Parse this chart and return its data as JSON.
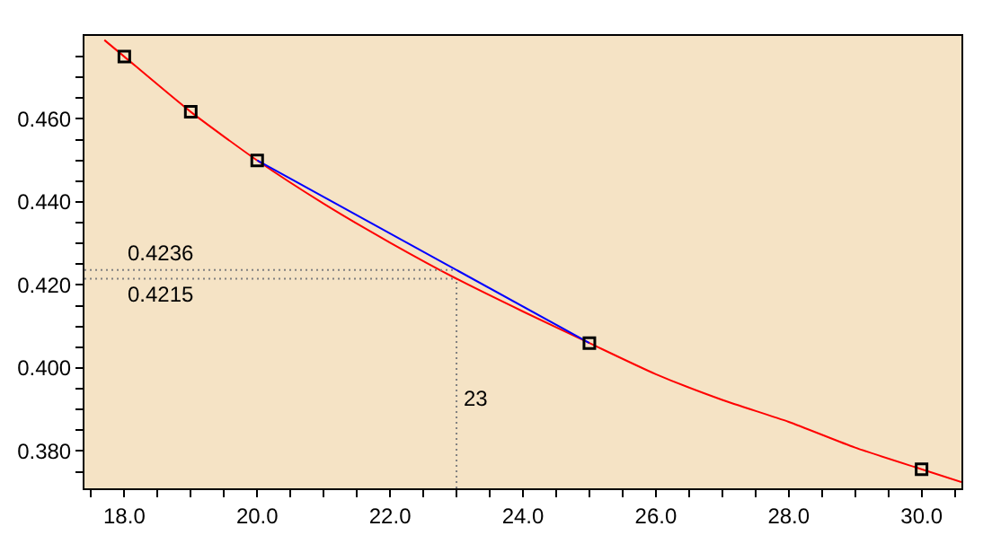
{
  "chart_data": {
    "type": "line",
    "xlim": [
      17.4,
      30.6
    ],
    "ylim": [
      0.371,
      0.48
    ],
    "xticks": [
      {
        "value": 17.5,
        "label": null
      },
      {
        "value": 18,
        "label": "18.0"
      },
      {
        "value": 18.5,
        "label": null
      },
      {
        "value": 19,
        "label": null
      },
      {
        "value": 19.5,
        "label": null
      },
      {
        "value": 20,
        "label": "20.0"
      },
      {
        "value": 20.5,
        "label": null
      },
      {
        "value": 21,
        "label": null
      },
      {
        "value": 21.5,
        "label": null
      },
      {
        "value": 22,
        "label": "22.0"
      },
      {
        "value": 22.5,
        "label": null
      },
      {
        "value": 23,
        "label": null
      },
      {
        "value": 23.5,
        "label": null
      },
      {
        "value": 24,
        "label": "24.0"
      },
      {
        "value": 24.5,
        "label": null
      },
      {
        "value": 25,
        "label": null
      },
      {
        "value": 25.5,
        "label": null
      },
      {
        "value": 26,
        "label": "26.0"
      },
      {
        "value": 26.5,
        "label": null
      },
      {
        "value": 27,
        "label": null
      },
      {
        "value": 27.5,
        "label": null
      },
      {
        "value": 28,
        "label": "28.0"
      },
      {
        "value": 28.5,
        "label": null
      },
      {
        "value": 29,
        "label": null
      },
      {
        "value": 29.5,
        "label": null
      },
      {
        "value": 30,
        "label": "30.0"
      },
      {
        "value": 30.5,
        "label": null
      }
    ],
    "yticks": [
      {
        "value": 0.375,
        "label": null
      },
      {
        "value": 0.38,
        "label": "0.380"
      },
      {
        "value": 0.385,
        "label": null
      },
      {
        "value": 0.39,
        "label": null
      },
      {
        "value": 0.395,
        "label": null
      },
      {
        "value": 0.4,
        "label": "0.400"
      },
      {
        "value": 0.405,
        "label": null
      },
      {
        "value": 0.41,
        "label": null
      },
      {
        "value": 0.415,
        "label": null
      },
      {
        "value": 0.42,
        "label": "0.420"
      },
      {
        "value": 0.425,
        "label": null
      },
      {
        "value": 0.43,
        "label": null
      },
      {
        "value": 0.435,
        "label": null
      },
      {
        "value": 0.44,
        "label": "0.440"
      },
      {
        "value": 0.445,
        "label": null
      },
      {
        "value": 0.45,
        "label": null
      },
      {
        "value": 0.455,
        "label": null
      },
      {
        "value": 0.46,
        "label": "0.460"
      },
      {
        "value": 0.465,
        "label": null
      },
      {
        "value": 0.47,
        "label": null
      },
      {
        "value": 0.475,
        "label": null
      }
    ],
    "grid": false,
    "series": [
      {
        "color": "#ff0000",
        "marker": "none",
        "line_style": "solid",
        "x": [
          17.7,
          18,
          19,
          20,
          21,
          22,
          23,
          24,
          25,
          26,
          27,
          28,
          29,
          30,
          30.6
        ],
        "values": [
          0.479,
          0.475,
          0.4617,
          0.45,
          0.4396,
          0.4302,
          0.4215,
          0.4136,
          0.406,
          0.3985,
          0.3923,
          0.387,
          0.3808,
          0.3756,
          0.3725
        ]
      },
      {
        "type": "line",
        "color": "#0000ff",
        "marker": "none",
        "line_style": "solid",
        "x": [
          20,
          25
        ],
        "values": [
          0.45,
          0.406
        ]
      },
      {
        "type": "scatter",
        "color": "#000000",
        "marker": "square",
        "x": [
          18,
          19,
          20,
          25,
          30
        ],
        "values": [
          0.475,
          0.4617,
          0.45,
          0.406,
          0.3756
        ]
      }
    ],
    "ref_lines": [
      {
        "axis": "y",
        "value": 0.4236,
        "label": "0.4236",
        "color": "#808080",
        "line_style": "dotted"
      },
      {
        "axis": "y",
        "value": 0.4215,
        "label": "0.4215",
        "color": "#808080",
        "line_style": "dotted"
      },
      {
        "axis": "x",
        "value": 23,
        "label": "23",
        "color": "#808080",
        "line_style": "dotted"
      }
    ]
  }
}
